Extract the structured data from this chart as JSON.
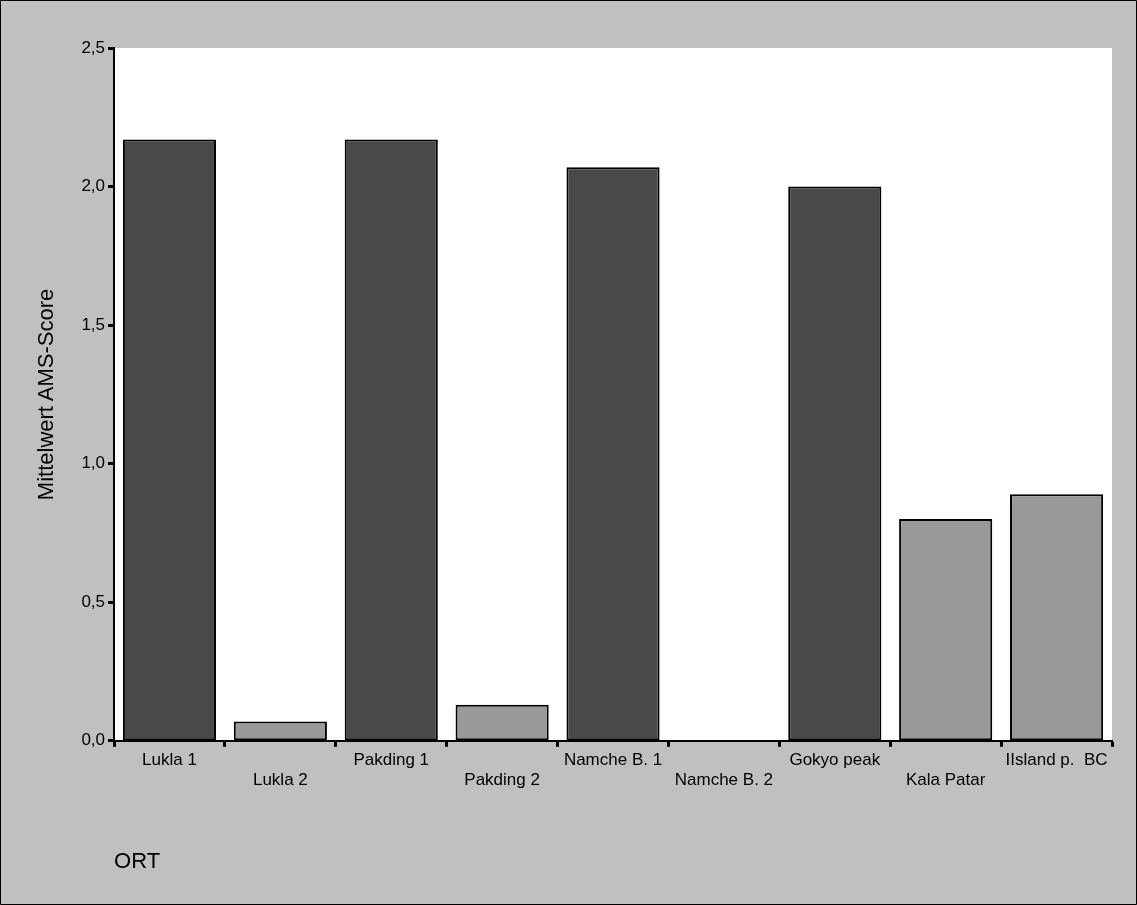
{
  "chart_data": {
    "type": "bar",
    "xlabel": "ORT",
    "ylabel": "Mittelwert AMS-Score",
    "categories": [
      "Lukla 1",
      "Lukla 2",
      "Pakding 1",
      "Pakding 2",
      "Namche B. 1",
      "Namche B. 2",
      "Gokyo peak",
      "Kala Patar",
      "IIsland p.  BC"
    ],
    "values": [
      2.17,
      0.07,
      2.17,
      0.13,
      2.07,
      0.0,
      2.0,
      0.8,
      0.89
    ],
    "colors": [
      "#494949",
      "#999999",
      "#494949",
      "#999999",
      "#494949",
      "#999999",
      "#494949",
      "#999999",
      "#999999"
    ],
    "ylim": [
      0,
      2.5
    ],
    "yticks": [
      {
        "value": 0,
        "label": "0,0"
      },
      {
        "value": 0.5,
        "label": "0,5"
      },
      {
        "value": 1,
        "label": "1,0"
      },
      {
        "value": 1.5,
        "label": "1,5"
      },
      {
        "value": 2,
        "label": "2,0"
      },
      {
        "value": 2.5,
        "label": "2,5"
      }
    ],
    "grid": false,
    "legend": false
  }
}
